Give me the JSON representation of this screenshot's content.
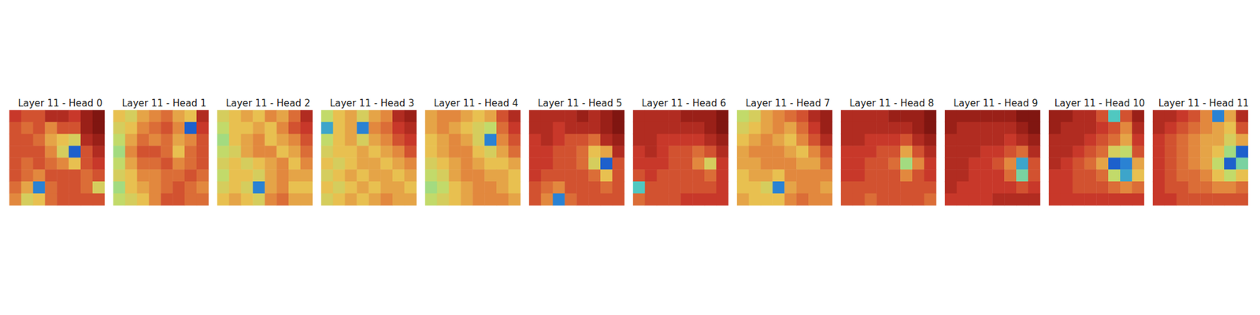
{
  "chart_data": [
    {
      "type": "heatmap",
      "title": "Layer 11 - Head 0",
      "tick_labels": false,
      "color_range": [
        0,
        1
      ],
      "cells": [
        [
          0.25,
          0.3,
          0.3,
          0.2,
          0.2,
          0.25,
          0.15,
          0.1
        ],
        [
          0.3,
          0.35,
          0.3,
          0.4,
          0.3,
          0.3,
          0.15,
          0.1
        ],
        [
          0.3,
          0.3,
          0.35,
          0.45,
          0.5,
          0.55,
          0.2,
          0.15
        ],
        [
          0.3,
          0.3,
          0.3,
          0.4,
          0.55,
          0.9,
          0.3,
          0.2
        ],
        [
          0.3,
          0.35,
          0.3,
          0.35,
          0.4,
          0.5,
          0.3,
          0.25
        ],
        [
          0.3,
          0.35,
          0.4,
          0.3,
          0.3,
          0.3,
          0.35,
          0.3
        ],
        [
          0.35,
          0.45,
          0.85,
          0.35,
          0.3,
          0.3,
          0.35,
          0.55
        ],
        [
          0.4,
          0.55,
          0.5,
          0.35,
          0.3,
          0.3,
          0.3,
          0.3
        ]
      ]
    },
    {
      "type": "heatmap",
      "title": "Layer 11 - Head 1",
      "tick_labels": false,
      "color_range": [
        0,
        1
      ],
      "cells": [
        [
          0.5,
          0.55,
          0.45,
          0.4,
          0.35,
          0.45,
          0.5,
          0.2
        ],
        [
          0.55,
          0.5,
          0.4,
          0.35,
          0.3,
          0.4,
          0.9,
          0.25
        ],
        [
          0.6,
          0.45,
          0.35,
          0.4,
          0.35,
          0.45,
          0.4,
          0.3
        ],
        [
          0.65,
          0.4,
          0.3,
          0.3,
          0.35,
          0.5,
          0.35,
          0.3
        ],
        [
          0.6,
          0.45,
          0.35,
          0.35,
          0.3,
          0.4,
          0.35,
          0.3
        ],
        [
          0.55,
          0.5,
          0.4,
          0.4,
          0.35,
          0.35,
          0.3,
          0.35
        ],
        [
          0.65,
          0.5,
          0.45,
          0.4,
          0.35,
          0.3,
          0.35,
          0.4
        ],
        [
          0.6,
          0.55,
          0.5,
          0.4,
          0.3,
          0.3,
          0.35,
          0.35
        ]
      ]
    },
    {
      "type": "heatmap",
      "title": "Layer 11 - Head 2",
      "tick_labels": false,
      "color_range": [
        0,
        1
      ],
      "cells": [
        [
          0.55,
          0.5,
          0.45,
          0.5,
          0.4,
          0.45,
          0.35,
          0.2
        ],
        [
          0.6,
          0.5,
          0.5,
          0.45,
          0.5,
          0.4,
          0.3,
          0.25
        ],
        [
          0.65,
          0.5,
          0.45,
          0.4,
          0.5,
          0.45,
          0.4,
          0.3
        ],
        [
          0.6,
          0.55,
          0.45,
          0.4,
          0.4,
          0.5,
          0.45,
          0.35
        ],
        [
          0.55,
          0.5,
          0.55,
          0.5,
          0.45,
          0.4,
          0.5,
          0.4
        ],
        [
          0.6,
          0.5,
          0.5,
          0.55,
          0.45,
          0.4,
          0.45,
          0.45
        ],
        [
          0.55,
          0.5,
          0.55,
          0.85,
          0.45,
          0.4,
          0.5,
          0.5
        ],
        [
          0.5,
          0.45,
          0.5,
          0.55,
          0.4,
          0.35,
          0.45,
          0.45
        ]
      ]
    },
    {
      "type": "heatmap",
      "title": "Layer 11 - Head 3",
      "tick_labels": false,
      "color_range": [
        0,
        1
      ],
      "cells": [
        [
          0.6,
          0.5,
          0.45,
          0.55,
          0.45,
          0.4,
          0.2,
          0.15
        ],
        [
          0.8,
          0.5,
          0.45,
          0.85,
          0.4,
          0.35,
          0.25,
          0.2
        ],
        [
          0.6,
          0.5,
          0.45,
          0.55,
          0.45,
          0.4,
          0.3,
          0.25
        ],
        [
          0.55,
          0.5,
          0.5,
          0.45,
          0.5,
          0.45,
          0.4,
          0.3
        ],
        [
          0.5,
          0.55,
          0.5,
          0.45,
          0.45,
          0.5,
          0.45,
          0.4
        ],
        [
          0.55,
          0.5,
          0.45,
          0.5,
          0.45,
          0.45,
          0.5,
          0.45
        ],
        [
          0.5,
          0.55,
          0.5,
          0.45,
          0.5,
          0.45,
          0.45,
          0.5
        ],
        [
          0.55,
          0.5,
          0.45,
          0.5,
          0.45,
          0.4,
          0.45,
          0.45
        ]
      ]
    },
    {
      "type": "heatmap",
      "title": "Layer 11 - Head 4",
      "tick_labels": false,
      "color_range": [
        0,
        1
      ],
      "cells": [
        [
          0.45,
          0.4,
          0.4,
          0.45,
          0.5,
          0.45,
          0.3,
          0.2
        ],
        [
          0.45,
          0.4,
          0.45,
          0.5,
          0.55,
          0.6,
          0.35,
          0.25
        ],
        [
          0.5,
          0.45,
          0.4,
          0.45,
          0.55,
          0.85,
          0.4,
          0.3
        ],
        [
          0.5,
          0.45,
          0.4,
          0.4,
          0.5,
          0.55,
          0.45,
          0.35
        ],
        [
          0.55,
          0.5,
          0.45,
          0.4,
          0.45,
          0.5,
          0.5,
          0.45
        ],
        [
          0.6,
          0.55,
          0.45,
          0.4,
          0.4,
          0.45,
          0.45,
          0.5
        ],
        [
          0.65,
          0.6,
          0.5,
          0.45,
          0.4,
          0.4,
          0.45,
          0.5
        ],
        [
          0.6,
          0.55,
          0.5,
          0.45,
          0.4,
          0.4,
          0.4,
          0.45
        ]
      ]
    },
    {
      "type": "heatmap",
      "title": "Layer 11 - Head 5",
      "tick_labels": false,
      "color_range": [
        0,
        1
      ],
      "cells": [
        [
          0.2,
          0.2,
          0.2,
          0.2,
          0.15,
          0.2,
          0.15,
          0.1
        ],
        [
          0.2,
          0.2,
          0.25,
          0.2,
          0.2,
          0.2,
          0.15,
          0.1
        ],
        [
          0.25,
          0.2,
          0.25,
          0.3,
          0.3,
          0.35,
          0.2,
          0.15
        ],
        [
          0.25,
          0.25,
          0.3,
          0.3,
          0.35,
          0.5,
          0.45,
          0.2
        ],
        [
          0.25,
          0.25,
          0.3,
          0.3,
          0.35,
          0.55,
          0.9,
          0.3
        ],
        [
          0.25,
          0.3,
          0.3,
          0.3,
          0.3,
          0.35,
          0.5,
          0.3
        ],
        [
          0.3,
          0.35,
          0.4,
          0.3,
          0.3,
          0.3,
          0.35,
          0.3
        ],
        [
          0.3,
          0.4,
          0.85,
          0.35,
          0.3,
          0.3,
          0.3,
          0.3
        ]
      ]
    },
    {
      "type": "heatmap",
      "title": "Layer 11 - Head 6",
      "tick_labels": false,
      "color_range": [
        0,
        1
      ],
      "cells": [
        [
          0.2,
          0.2,
          0.2,
          0.2,
          0.15,
          0.15,
          0.15,
          0.1
        ],
        [
          0.2,
          0.2,
          0.2,
          0.2,
          0.2,
          0.2,
          0.15,
          0.1
        ],
        [
          0.2,
          0.2,
          0.25,
          0.25,
          0.25,
          0.25,
          0.2,
          0.15
        ],
        [
          0.25,
          0.2,
          0.25,
          0.3,
          0.3,
          0.35,
          0.3,
          0.2
        ],
        [
          0.25,
          0.25,
          0.25,
          0.3,
          0.3,
          0.4,
          0.55,
          0.25
        ],
        [
          0.3,
          0.25,
          0.3,
          0.3,
          0.3,
          0.3,
          0.35,
          0.25
        ],
        [
          0.75,
          0.3,
          0.3,
          0.3,
          0.3,
          0.3,
          0.3,
          0.25
        ],
        [
          0.35,
          0.3,
          0.3,
          0.3,
          0.25,
          0.25,
          0.25,
          0.25
        ]
      ]
    },
    {
      "type": "heatmap",
      "title": "Layer 11 - Head 7",
      "tick_labels": false,
      "color_range": [
        0,
        1
      ],
      "cells": [
        [
          0.6,
          0.55,
          0.45,
          0.4,
          0.35,
          0.3,
          0.2,
          0.15
        ],
        [
          0.55,
          0.5,
          0.45,
          0.4,
          0.45,
          0.35,
          0.25,
          0.15
        ],
        [
          0.5,
          0.45,
          0.4,
          0.45,
          0.5,
          0.4,
          0.3,
          0.2
        ],
        [
          0.45,
          0.4,
          0.4,
          0.4,
          0.45,
          0.5,
          0.4,
          0.3
        ],
        [
          0.45,
          0.45,
          0.4,
          0.4,
          0.4,
          0.45,
          0.45,
          0.35
        ],
        [
          0.5,
          0.45,
          0.45,
          0.5,
          0.4,
          0.4,
          0.4,
          0.4
        ],
        [
          0.5,
          0.5,
          0.55,
          0.85,
          0.45,
          0.4,
          0.4,
          0.45
        ],
        [
          0.45,
          0.5,
          0.5,
          0.5,
          0.4,
          0.35,
          0.4,
          0.4
        ]
      ]
    },
    {
      "type": "heatmap",
      "title": "Layer 11 - Head 8",
      "tick_labels": false,
      "color_range": [
        0,
        1
      ],
      "cells": [
        [
          0.2,
          0.2,
          0.2,
          0.2,
          0.15,
          0.15,
          0.15,
          0.1
        ],
        [
          0.2,
          0.2,
          0.2,
          0.2,
          0.2,
          0.2,
          0.15,
          0.1
        ],
        [
          0.2,
          0.2,
          0.25,
          0.25,
          0.25,
          0.3,
          0.2,
          0.15
        ],
        [
          0.25,
          0.25,
          0.25,
          0.3,
          0.3,
          0.45,
          0.3,
          0.2
        ],
        [
          0.25,
          0.25,
          0.3,
          0.3,
          0.35,
          0.65,
          0.4,
          0.25
        ],
        [
          0.25,
          0.25,
          0.3,
          0.3,
          0.3,
          0.4,
          0.3,
          0.25
        ],
        [
          0.3,
          0.3,
          0.3,
          0.3,
          0.3,
          0.3,
          0.3,
          0.3
        ],
        [
          0.3,
          0.3,
          0.35,
          0.3,
          0.3,
          0.3,
          0.3,
          0.35
        ]
      ]
    },
    {
      "type": "heatmap",
      "title": "Layer 11 - Head 9",
      "tick_labels": false,
      "color_range": [
        0,
        1
      ],
      "cells": [
        [
          0.15,
          0.15,
          0.15,
          0.15,
          0.15,
          0.15,
          0.1,
          0.1
        ],
        [
          0.15,
          0.2,
          0.2,
          0.2,
          0.2,
          0.2,
          0.15,
          0.1
        ],
        [
          0.2,
          0.2,
          0.2,
          0.2,
          0.2,
          0.25,
          0.2,
          0.15
        ],
        [
          0.2,
          0.2,
          0.2,
          0.25,
          0.25,
          0.3,
          0.35,
          0.2
        ],
        [
          0.2,
          0.2,
          0.25,
          0.25,
          0.3,
          0.4,
          0.8,
          0.3
        ],
        [
          0.2,
          0.2,
          0.25,
          0.25,
          0.25,
          0.35,
          0.7,
          0.3
        ],
        [
          0.2,
          0.25,
          0.25,
          0.25,
          0.25,
          0.25,
          0.3,
          0.25
        ],
        [
          0.25,
          0.25,
          0.25,
          0.25,
          0.2,
          0.2,
          0.2,
          0.2
        ]
      ]
    },
    {
      "type": "heatmap",
      "title": "Layer 11 - Head 10",
      "tick_labels": false,
      "color_range": [
        0,
        1
      ],
      "cells": [
        [
          0.15,
          0.15,
          0.2,
          0.2,
          0.3,
          0.75,
          0.3,
          0.15
        ],
        [
          0.15,
          0.2,
          0.2,
          0.2,
          0.25,
          0.3,
          0.4,
          0.2
        ],
        [
          0.2,
          0.2,
          0.2,
          0.25,
          0.3,
          0.35,
          0.45,
          0.25
        ],
        [
          0.2,
          0.2,
          0.25,
          0.3,
          0.35,
          0.55,
          0.6,
          0.3
        ],
        [
          0.2,
          0.25,
          0.3,
          0.35,
          0.45,
          0.9,
          0.85,
          0.45
        ],
        [
          0.25,
          0.25,
          0.3,
          0.3,
          0.35,
          0.6,
          0.8,
          0.5
        ],
        [
          0.25,
          0.25,
          0.3,
          0.3,
          0.3,
          0.35,
          0.4,
          0.35
        ],
        [
          0.25,
          0.25,
          0.25,
          0.25,
          0.25,
          0.25,
          0.25,
          0.25
        ]
      ]
    },
    {
      "type": "heatmap",
      "title": "Layer 11 - Head 11",
      "tick_labels": false,
      "color_range": [
        0,
        1
      ],
      "cells": [
        [
          0.2,
          0.2,
          0.25,
          0.3,
          0.4,
          0.85,
          0.45,
          0.2
        ],
        [
          0.2,
          0.25,
          0.3,
          0.35,
          0.4,
          0.45,
          0.5,
          0.3
        ],
        [
          0.25,
          0.3,
          0.35,
          0.4,
          0.45,
          0.45,
          0.55,
          0.45
        ],
        [
          0.25,
          0.3,
          0.35,
          0.4,
          0.45,
          0.5,
          0.65,
          0.9
        ],
        [
          0.25,
          0.3,
          0.35,
          0.4,
          0.45,
          0.6,
          0.9,
          0.7
        ],
        [
          0.25,
          0.3,
          0.35,
          0.35,
          0.4,
          0.5,
          0.6,
          0.5
        ],
        [
          0.25,
          0.3,
          0.3,
          0.35,
          0.35,
          0.4,
          0.4,
          0.35
        ],
        [
          0.25,
          0.25,
          0.3,
          0.3,
          0.3,
          0.3,
          0.3,
          0.3
        ]
      ]
    }
  ]
}
